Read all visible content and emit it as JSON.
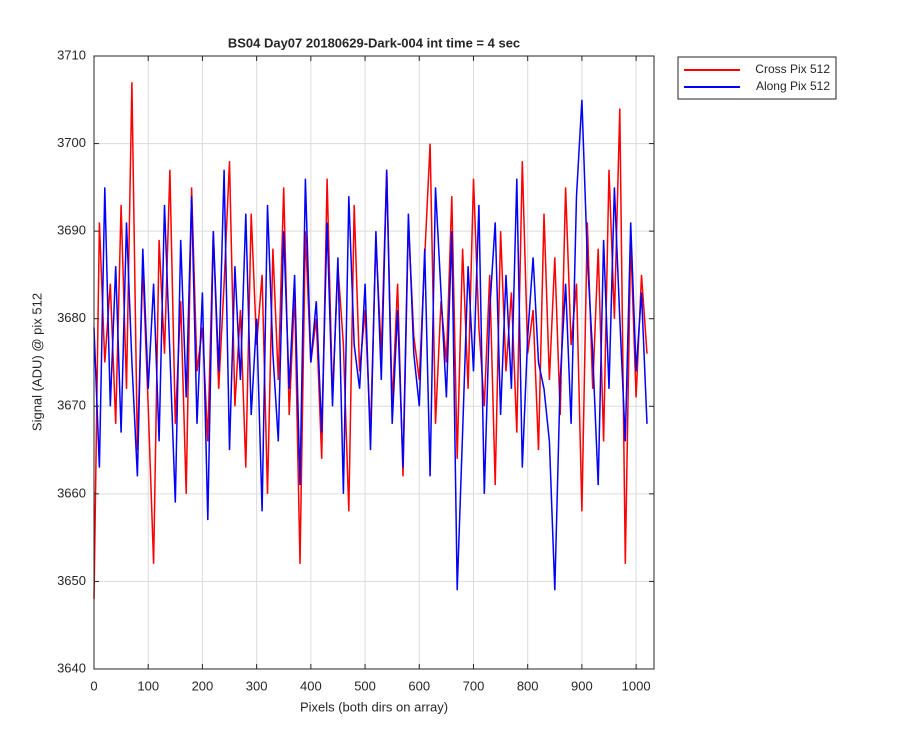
{
  "chart_data": {
    "type": "line",
    "title": "BS04 Day07 20180629-Dark-004 int time = 4 sec",
    "xlabel": "Pixels (both dirs on array)",
    "ylabel": "Signal (ADU) @ pix 512",
    "x": [
      0,
      10,
      20,
      30,
      40,
      50,
      60,
      70,
      80,
      90,
      100,
      110,
      120,
      130,
      140,
      150,
      160,
      170,
      180,
      190,
      200,
      210,
      220,
      230,
      240,
      250,
      260,
      270,
      280,
      290,
      300,
      310,
      320,
      330,
      340,
      350,
      360,
      370,
      380,
      390,
      400,
      410,
      420,
      430,
      440,
      450,
      460,
      470,
      480,
      490,
      500,
      510,
      520,
      530,
      540,
      550,
      560,
      570,
      580,
      590,
      600,
      610,
      620,
      630,
      640,
      650,
      660,
      670,
      680,
      690,
      700,
      710,
      720,
      730,
      740,
      750,
      760,
      770,
      780,
      790,
      800,
      810,
      820,
      830,
      840,
      850,
      860,
      870,
      880,
      890,
      900,
      910,
      920,
      930,
      940,
      950,
      960,
      970,
      980,
      990,
      1000,
      1010,
      1020
    ],
    "series": [
      {
        "name": "Cross Pix 512",
        "color": "#ff0000",
        "values": [
          3648,
          3691,
          3675,
          3684,
          3668,
          3693,
          3672,
          3707,
          3665,
          3686,
          3670,
          3652,
          3689,
          3676,
          3697,
          3668,
          3682,
          3660,
          3695,
          3674,
          3679,
          3666,
          3690,
          3672,
          3684,
          3698,
          3670,
          3681,
          3663,
          3692,
          3677,
          3685,
          3660,
          3688,
          3673,
          3695,
          3669,
          3683,
          3652,
          3690,
          3675,
          3680,
          3664,
          3696,
          3671,
          3686,
          3677,
          3658,
          3693,
          3674,
          3681,
          3667,
          3689,
          3676,
          3697,
          3670,
          3684,
          3662,
          3691,
          3678,
          3673,
          3687,
          3700,
          3668,
          3682,
          3675,
          3694,
          3664,
          3688,
          3672,
          3696,
          3679,
          3670,
          3685,
          3661,
          3690,
          3674,
          3683,
          3667,
          3698,
          3676,
          3681,
          3665,
          3692,
          3673,
          3687,
          3669,
          3695,
          3677,
          3684,
          3658,
          3691,
          3672,
          3688,
          3666,
          3697,
          3680,
          3704,
          3652,
          3689,
          3671,
          3685,
          3676
        ]
      },
      {
        "name": "Along Pix 512",
        "color": "#0000ff",
        "values": [
          3679,
          3663,
          3695,
          3670,
          3686,
          3667,
          3691,
          3675,
          3662,
          3688,
          3672,
          3684,
          3666,
          3693,
          3676,
          3659,
          3689,
          3671,
          3694,
          3668,
          3683,
          3657,
          3690,
          3674,
          3697,
          3665,
          3686,
          3673,
          3692,
          3669,
          3680,
          3658,
          3693,
          3676,
          3666,
          3690,
          3672,
          3685,
          3661,
          3696,
          3675,
          3682,
          3667,
          3691,
          3670,
          3687,
          3660,
          3694,
          3677,
          3672,
          3684,
          3665,
          3690,
          3673,
          3697,
          3668,
          3681,
          3663,
          3692,
          3676,
          3670,
          3688,
          3662,
          3695,
          3683,
          3671,
          3690,
          3649,
          3667,
          3686,
          3674,
          3693,
          3660,
          3681,
          3691,
          3669,
          3685,
          3672,
          3696,
          3663,
          3678,
          3687,
          3675,
          3672,
          3666,
          3649,
          3673,
          3684,
          3668,
          3694,
          3705,
          3687,
          3676,
          3661,
          3689,
          3672,
          3695,
          3680,
          3666,
          3691,
          3674,
          3683,
          3668
        ]
      }
    ],
    "xlim": [
      0,
      1033
    ],
    "ylim": [
      3640,
      3710
    ],
    "xticks": [
      0,
      100,
      200,
      300,
      400,
      500,
      600,
      700,
      800,
      900,
      1000
    ],
    "yticks": [
      3640,
      3650,
      3660,
      3670,
      3680,
      3690,
      3700,
      3710
    ],
    "grid": true,
    "legend": "northeast outside"
  }
}
